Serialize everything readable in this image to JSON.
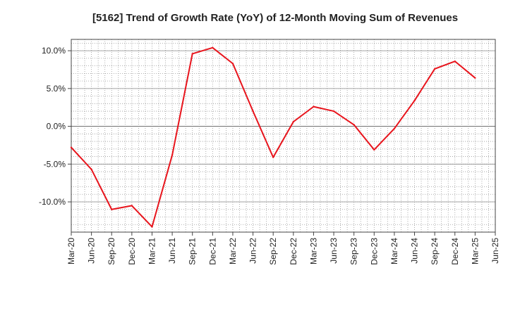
{
  "chart_data": {
    "type": "line",
    "title": "[5162]  Trend of Growth Rate (YoY) of 12-Month Moving Sum of Revenues",
    "xlabel": "",
    "ylabel": "",
    "ylim": [
      -14.0,
      11.5
    ],
    "yticks": [
      10.0,
      5.0,
      0.0,
      -5.0,
      -10.0
    ],
    "ytick_labels": [
      "10.0%",
      "5.0%",
      "0.0%",
      "-5.0%",
      "-10.0%"
    ],
    "x_tick_labels": [
      "Mar-20",
      "Jun-20",
      "Sep-20",
      "Dec-20",
      "Mar-21",
      "Jun-21",
      "Sep-21",
      "Dec-21",
      "Mar-22",
      "Jun-22",
      "Sep-22",
      "Dec-22",
      "Mar-23",
      "Jun-23",
      "Sep-23",
      "Dec-23",
      "Mar-24",
      "Jun-24",
      "Sep-24",
      "Dec-24",
      "Mar-25",
      "Jun-25"
    ],
    "grid": true,
    "series": [
      {
        "color": "#e8141c",
        "x": [
          "Mar-20",
          "Jun-20",
          "Sep-20",
          "Dec-20",
          "Mar-21",
          "Jun-21",
          "Sep-21",
          "Dec-21",
          "Mar-22",
          "Jun-22",
          "Sep-22",
          "Dec-22",
          "Mar-23",
          "Jun-23",
          "Sep-23",
          "Dec-23",
          "Mar-24",
          "Jun-24",
          "Sep-24",
          "Dec-24",
          "Mar-25"
        ],
        "values": [
          -2.8,
          -5.7,
          -11.0,
          -10.5,
          -13.3,
          -3.8,
          9.6,
          10.4,
          8.3,
          2.0,
          -4.1,
          0.6,
          2.6,
          2.0,
          0.2,
          -3.1,
          -0.3,
          3.4,
          7.6,
          8.6,
          6.4
        ]
      }
    ],
    "zero_line": true
  }
}
